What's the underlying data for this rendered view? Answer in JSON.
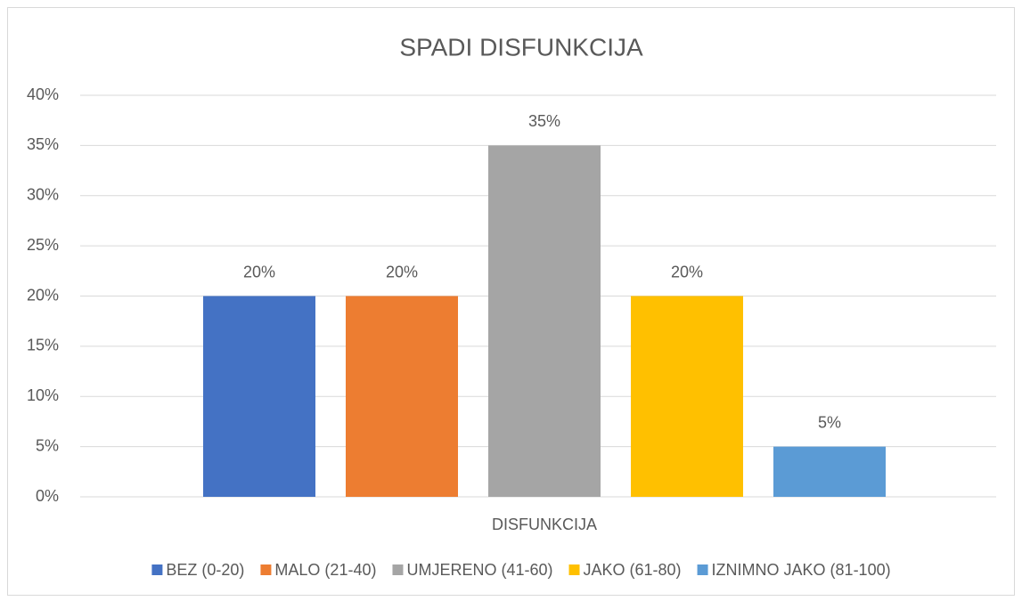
{
  "chart_data": {
    "type": "bar",
    "title": "SPADI DISFUNKCIJA",
    "categories": [
      "DISFUNKCIJA"
    ],
    "series": [
      {
        "name": "BEZ (0-20)",
        "color": "#4472c4",
        "values": [
          20
        ],
        "value_labels": [
          "20%"
        ]
      },
      {
        "name": "MALO (21-40)",
        "color": "#ed7d31",
        "values": [
          20
        ],
        "value_labels": [
          "20%"
        ]
      },
      {
        "name": "UMJERENO (41-60)",
        "color": "#a5a5a5",
        "values": [
          35
        ],
        "value_labels": [
          "35%"
        ]
      },
      {
        "name": "JAKO (61-80)",
        "color": "#ffc000",
        "values": [
          20
        ],
        "value_labels": [
          "20%"
        ]
      },
      {
        "name": "IZNIMNO JAKO (81-100)",
        "color": "#5b9bd5",
        "values": [
          5
        ],
        "value_labels": [
          "5%"
        ]
      }
    ],
    "ylim": [
      0,
      40
    ],
    "yticks": [
      {
        "value": 0,
        "label": "0%"
      },
      {
        "value": 5,
        "label": "5%"
      },
      {
        "value": 10,
        "label": "10%"
      },
      {
        "value": 15,
        "label": "15%"
      },
      {
        "value": 20,
        "label": "20%"
      },
      {
        "value": 25,
        "label": "25%"
      },
      {
        "value": 30,
        "label": "30%"
      },
      {
        "value": 35,
        "label": "35%"
      },
      {
        "value": 40,
        "label": "40%"
      }
    ],
    "grid": true,
    "legend": "bottom"
  }
}
